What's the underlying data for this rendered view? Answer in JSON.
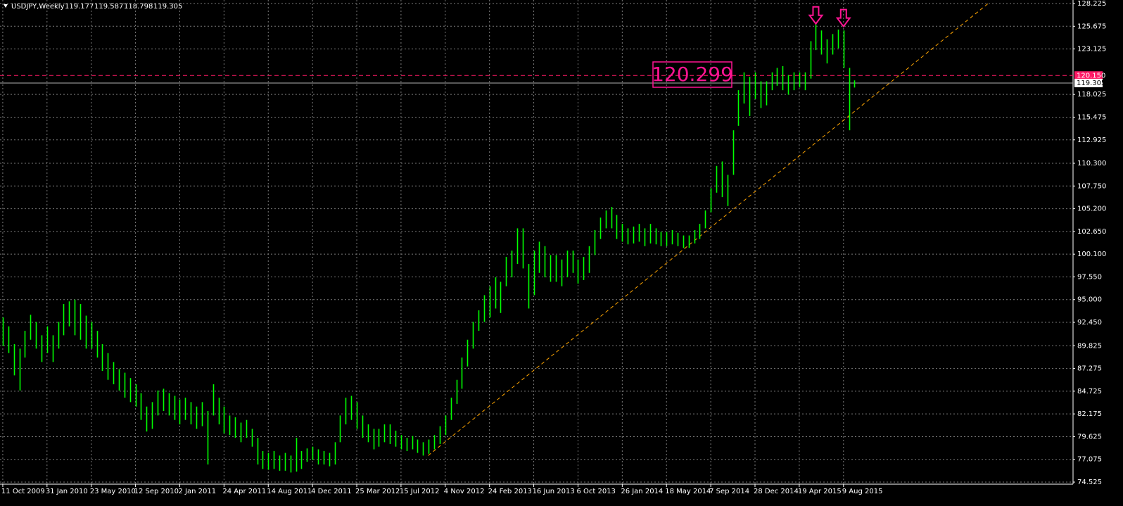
{
  "chart_data": {
    "type": "range_bar",
    "symbol": "USDJPY,Weekly",
    "ohlc": [
      119.177,
      119.587,
      118.798,
      119.305
    ],
    "series": [
      {
        "color": "#00ff00",
        "high": [
          93,
          92,
          90,
          89.5,
          91.5,
          93.3,
          92.5,
          91,
          92,
          91,
          92.5,
          94.5,
          94.8,
          95,
          94.5,
          93.2,
          92.5,
          91.5,
          90,
          89,
          88,
          87.2,
          86.8,
          86.2,
          85.5,
          84.5,
          83,
          83.5,
          84.8,
          85,
          84.5,
          84.2,
          83.8,
          84,
          83.5,
          83,
          83.5,
          82.5,
          85.5,
          84,
          83,
          82,
          81.8,
          81.2,
          81.5,
          80.5,
          79.5,
          78,
          77.8,
          78,
          77.5,
          77.8,
          77.5,
          79.5,
          78,
          78.3,
          78.5,
          78.2,
          78,
          77.8,
          79,
          82,
          84,
          84.2,
          83.5,
          82,
          81,
          80.5,
          80.5,
          81,
          81,
          80.3,
          79.8,
          79.5,
          79.7,
          79.3,
          79,
          79.3,
          79.8,
          80.8,
          82,
          84,
          86,
          88.5,
          90.5,
          92.5,
          93.8,
          95.5,
          96.5,
          97.5,
          97,
          99.8,
          100.5,
          103,
          103,
          99,
          100.5,
          101.5,
          101,
          100,
          100,
          99.5,
          100.5,
          100.5,
          99.5,
          99.8,
          101,
          102.8,
          104.2,
          105,
          105.4,
          104.5,
          103.5,
          103,
          103.2,
          103.5,
          103,
          103.5,
          103,
          102.6,
          102.6,
          102.8,
          102.5,
          102.2,
          102.2,
          102.8,
          103.5,
          105,
          107.5,
          110,
          110.5,
          109,
          114,
          118.5,
          120.5,
          120,
          120.5,
          119.5,
          119.5,
          120.5,
          121,
          121.2,
          120.2,
          120.5,
          120.5,
          120.5,
          124,
          125.9,
          125.2,
          124.2,
          124.8,
          125.3,
          125.2,
          121,
          119.6
        ],
        "low": [
          89.8,
          89,
          86.5,
          84.8,
          88.5,
          90.5,
          89.5,
          88,
          89,
          88,
          89.5,
          91,
          92,
          91,
          90.5,
          89.5,
          89.5,
          88.5,
          87,
          86,
          85.5,
          84.8,
          84,
          83.5,
          83,
          81.5,
          80.2,
          80.5,
          82,
          82.5,
          82,
          81.5,
          81,
          81.5,
          81,
          80.5,
          80.8,
          76.5,
          82,
          81,
          80,
          79.8,
          79.5,
          79,
          79.5,
          78.5,
          76.5,
          76,
          75.9,
          76,
          75.8,
          75.8,
          75.6,
          75.7,
          76,
          76.8,
          77,
          76.5,
          76.5,
          76.3,
          76.5,
          79,
          81,
          81.5,
          80.5,
          79.5,
          79,
          78.2,
          78.5,
          79,
          78.8,
          78.5,
          78.2,
          78,
          78.2,
          77.8,
          77.5,
          77.7,
          78.2,
          78.8,
          79.8,
          81.5,
          83.3,
          85,
          87.5,
          89.5,
          91.5,
          92.5,
          93,
          94,
          93.5,
          96.5,
          97.5,
          99,
          98.5,
          94,
          95.5,
          98,
          97.5,
          97,
          97,
          96.5,
          97.5,
          98,
          96.8,
          97.2,
          98,
          100,
          101.8,
          103,
          103,
          101.8,
          101.5,
          101.2,
          101.3,
          101.5,
          101,
          101.3,
          101.2,
          101,
          101,
          101.2,
          101,
          100.8,
          100.8,
          101.3,
          101.8,
          103,
          104.8,
          107,
          106.5,
          105.5,
          109,
          114.5,
          117,
          115.6,
          117.5,
          116.5,
          116.8,
          118.5,
          119,
          118.5,
          118,
          118.5,
          118.8,
          118.5,
          119.8,
          123,
          122.5,
          121.5,
          122.5,
          123.2,
          121,
          114,
          118.8
        ]
      }
    ],
    "xlim": [
      -0.5,
      193.5
    ],
    "xticks": [
      {
        "value": 0,
        "label": "11 Oct 2009"
      },
      {
        "value": 8,
        "label": "31 Jan 2010"
      },
      {
        "value": 16,
        "label": "23 May 2010"
      },
      {
        "value": 24,
        "label": "12 Sep 2010"
      },
      {
        "value": 32,
        "label": "2 Jan 2011"
      },
      {
        "value": 40,
        "label": "24 Apr 2011"
      },
      {
        "value": 48,
        "label": "14 Aug 2011"
      },
      {
        "value": 56,
        "label": "4 Dec 2011"
      },
      {
        "value": 64,
        "label": "25 Mar 2012"
      },
      {
        "value": 72,
        "label": "15 Jul 2012"
      },
      {
        "value": 80,
        "label": "4 Nov 2012"
      },
      {
        "value": 88,
        "label": "24 Feb 2013"
      },
      {
        "value": 96,
        "label": "16 Jun 2013"
      },
      {
        "value": 104,
        "label": "6 Oct 2013"
      },
      {
        "value": 112,
        "label": "26 Jan 2014"
      },
      {
        "value": 120,
        "label": "18 May 2014"
      },
      {
        "value": 128,
        "label": "7 Sep 2014"
      },
      {
        "value": 136,
        "label": "28 Dec 2014"
      },
      {
        "value": 144,
        "label": "19 Apr 2015"
      },
      {
        "value": 152,
        "label": "9 Aug 2015"
      }
    ],
    "ylim": [
      74.29,
      128.62
    ],
    "yticks": [
      128.225,
      125.675,
      123.125,
      118.025,
      115.475,
      112.925,
      {
        "value": 110.3,
        "label": "110.300"
      },
      {
        "value": 107.75,
        "label": "107.750"
      },
      {
        "value": 105.2,
        "label": "105.200"
      },
      {
        "value": 102.65,
        "label": "102.650"
      },
      {
        "value": 100.1,
        "label": "100.100"
      },
      {
        "value": 97.55,
        "label": "97.550"
      },
      {
        "value": 95,
        "label": "95.000"
      },
      {
        "value": 92.45,
        "label": "92.450"
      },
      89.825,
      87.275,
      84.725,
      82.175,
      79.625,
      77.075,
      74.525
    ],
    "grid": true,
    "hlines": [
      {
        "value": 120.15,
        "label": "120.150",
        "color": "#ff1a66"
      },
      {
        "value": 119.305,
        "label": "119.305",
        "color": "#b0b0b0"
      }
    ],
    "trendline": {
      "x": [
        76.9,
        178.3
      ],
      "y": [
        77.5,
        128.3
      ],
      "color": "#ffa500"
    },
    "arrows": {
      "x": [
        147,
        152
      ],
      "y": [
        126.9,
        126.6
      ],
      "color": "#ff1493"
    },
    "annotation": "120.299"
  }
}
